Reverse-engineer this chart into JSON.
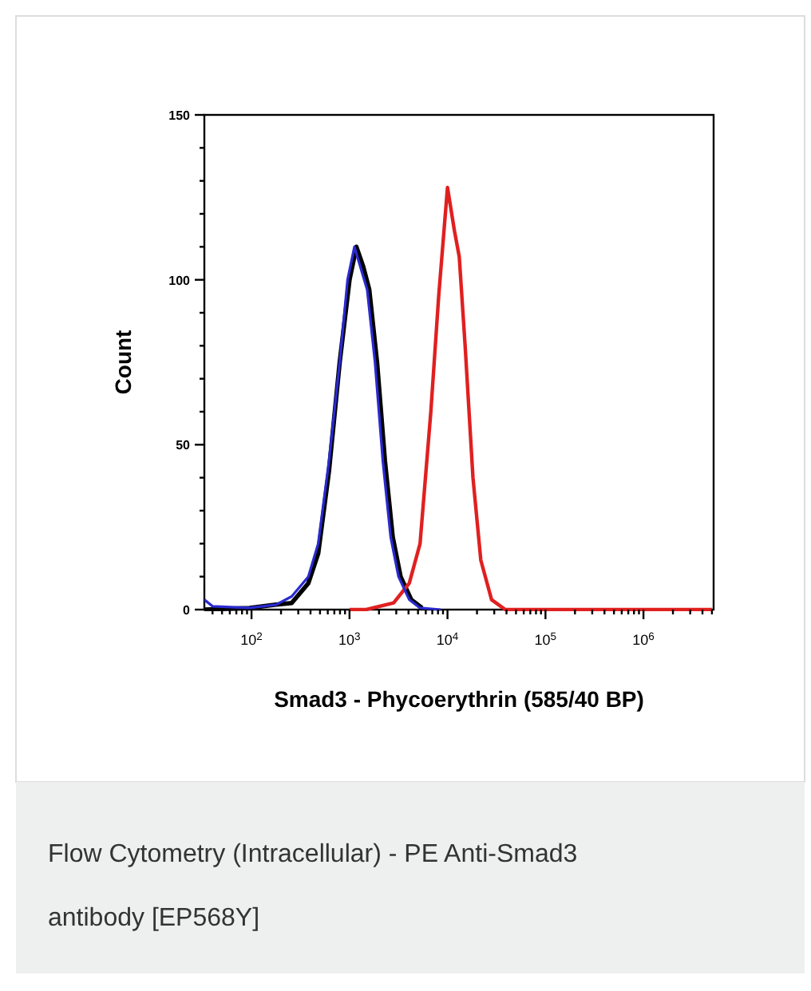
{
  "chart_data": {
    "type": "line",
    "xlabel": "Smad3 - Phycoerythrin (585/40 BP)",
    "ylabel": "Count",
    "log": "x",
    "grid": false,
    "line_style": "solid",
    "xlim": [
      33,
      5200000
    ],
    "ylim": [
      0,
      150
    ],
    "xticks": [
      {
        "value": 100,
        "label": "10$^{2}$"
      },
      {
        "value": 1000,
        "label": "10$^{3}$"
      },
      {
        "value": 10000,
        "label": "10$^{4}$"
      },
      {
        "value": 100000,
        "label": "10$^{5}$"
      },
      {
        "value": 1000000,
        "label": "10$^{6}$"
      },
      {
        "value": 40,
        "label": null
      },
      {
        "value": 50,
        "label": null
      },
      {
        "value": 60,
        "label": null
      },
      {
        "value": 70,
        "label": null
      },
      {
        "value": 80,
        "label": null
      },
      {
        "value": 90,
        "label": null
      },
      {
        "value": 200,
        "label": null
      },
      {
        "value": 300,
        "label": null
      },
      {
        "value": 400,
        "label": null
      },
      {
        "value": 500,
        "label": null
      },
      {
        "value": 600,
        "label": null
      },
      {
        "value": 700,
        "label": null
      },
      {
        "value": 800,
        "label": null
      },
      {
        "value": 900,
        "label": null
      },
      {
        "value": 2000,
        "label": null
      },
      {
        "value": 3000,
        "label": null
      },
      {
        "value": 4000,
        "label": null
      },
      {
        "value": 5000,
        "label": null
      },
      {
        "value": 6000,
        "label": null
      },
      {
        "value": 7000,
        "label": null
      },
      {
        "value": 8000,
        "label": null
      },
      {
        "value": 9000,
        "label": null
      },
      {
        "value": 20000,
        "label": null
      },
      {
        "value": 30000,
        "label": null
      },
      {
        "value": 40000,
        "label": null
      },
      {
        "value": 50000,
        "label": null
      },
      {
        "value": 60000,
        "label": null
      },
      {
        "value": 70000,
        "label": null
      },
      {
        "value": 80000,
        "label": null
      },
      {
        "value": 90000,
        "label": null
      },
      {
        "value": 200000,
        "label": null
      },
      {
        "value": 300000,
        "label": null
      },
      {
        "value": 400000,
        "label": null
      },
      {
        "value": 500000,
        "label": null
      },
      {
        "value": 600000,
        "label": null
      },
      {
        "value": 700000,
        "label": null
      },
      {
        "value": 800000,
        "label": null
      },
      {
        "value": 900000,
        "label": null
      },
      {
        "value": 2000000,
        "label": null
      },
      {
        "value": 3000000,
        "label": null
      },
      {
        "value": 4000000,
        "label": null
      },
      {
        "value": 5000000,
        "label": null
      }
    ],
    "yticks": [
      0,
      {
        "value": 10,
        "label": null
      },
      {
        "value": 20,
        "label": null
      },
      {
        "value": 30,
        "label": null
      },
      {
        "value": 40,
        "label": null
      },
      50,
      {
        "value": 60,
        "label": null
      },
      {
        "value": 70,
        "label": null
      },
      {
        "value": 80,
        "label": null
      },
      {
        "value": 90,
        "label": null
      },
      100,
      {
        "value": 110,
        "label": null
      },
      {
        "value": 120,
        "label": null
      },
      {
        "value": 130,
        "label": null
      },
      {
        "value": 140,
        "label": null
      },
      150
    ],
    "series": [
      {
        "color": "#000000",
        "x": [
          33,
          95,
          178,
          257,
          380,
          479,
          617,
          794,
          1000,
          1175,
          1380,
          1590,
          1910,
          2300,
          2760,
          3320,
          4270,
          5500
        ],
        "values": [
          0,
          0.5,
          1.5,
          2,
          8,
          17,
          42,
          75,
          100,
          110,
          104,
          97,
          75,
          45,
          22,
          10,
          3,
          0.5
        ]
      },
      {
        "color": "#e02020",
        "x": [
          1000,
          1479,
          2818,
          4074,
          5248,
          6761,
          8128,
          10000,
          11749,
          13183,
          15136,
          18197,
          21878,
          28184,
          38905,
          100000,
          5000000
        ],
        "values": [
          0,
          0,
          2,
          8,
          20,
          60,
          95,
          128,
          115,
          107,
          80,
          40,
          15,
          3,
          0,
          0,
          0
        ]
      },
      {
        "color": "#2a2ad0",
        "x": [
          33,
          40,
          95,
          178,
          257,
          380,
          479,
          617,
          794,
          955,
          1122,
          1318,
          1514,
          1820,
          2188,
          2630,
          3162,
          4074,
          5248,
          8511
        ],
        "values": [
          3,
          1,
          0.5,
          1.5,
          4,
          10,
          20,
          45,
          75,
          100,
          110,
          103,
          97,
          75,
          45,
          22,
          10,
          3,
          0.5,
          0
        ]
      }
    ],
    "annotations": [
      "Flow Cytometry (Intracellular) - PE Anti-Smad3 antibody [EP568Y]"
    ]
  }
}
